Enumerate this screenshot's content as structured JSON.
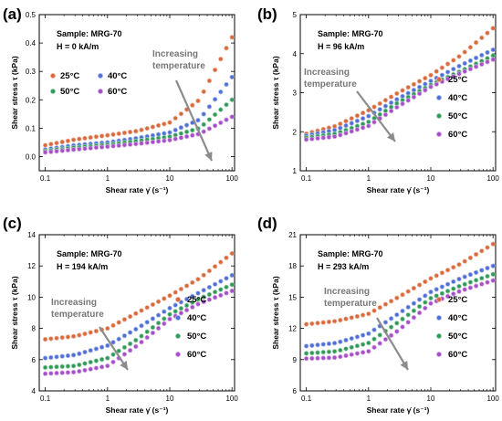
{
  "figure": {
    "colors": {
      "25C": "#d9683a",
      "40C": "#4f6fd6",
      "50C": "#2f9a57",
      "60C": "#a64dc8",
      "arrow": "#8c8c8c",
      "increasing_text": "#777777"
    }
  },
  "chart_data": [
    {
      "id": "a",
      "type": "scatter",
      "panel_label": "(a)",
      "sample_text": "Sample: MRG-70",
      "field_text": "H = 0 kA/m",
      "annotation": [
        "Increasing",
        "temperature"
      ],
      "xlabel": "Shear rate γ̇ (s⁻¹)",
      "ylabel": "Shear stress τ (kPa)",
      "x_scale": "log",
      "xlim": [
        0.08,
        110
      ],
      "ylim": [
        -0.05,
        0.5
      ],
      "yticks": [
        0.0,
        0.1,
        0.2,
        0.3,
        0.4,
        0.5
      ],
      "ytick_labels": [
        "0.0",
        "0.1",
        "0.2",
        "0.3",
        "0.4",
        "0.5"
      ],
      "xticks": [
        0.1,
        1,
        10,
        100
      ],
      "xtick_labels": [
        "0.1",
        "1",
        "10",
        "100"
      ],
      "legend_layout": "grid-top-left",
      "series": [
        {
          "name": "25°C",
          "key": "25C",
          "anchors": [
            [
              0.1,
              0.04
            ],
            [
              0.3,
              0.06
            ],
            [
              1,
              0.075
            ],
            [
              3,
              0.09
            ],
            [
              10,
              0.12
            ],
            [
              30,
              0.2
            ],
            [
              100,
              0.42
            ]
          ]
        },
        {
          "name": "40°C",
          "key": "40C",
          "anchors": [
            [
              0.1,
              0.025
            ],
            [
              0.3,
              0.04
            ],
            [
              1,
              0.05
            ],
            [
              3,
              0.065
            ],
            [
              10,
              0.085
            ],
            [
              30,
              0.13
            ],
            [
              100,
              0.28
            ]
          ]
        },
        {
          "name": "50°C",
          "key": "50C",
          "anchors": [
            [
              0.1,
              0.02
            ],
            [
              0.3,
              0.032
            ],
            [
              1,
              0.042
            ],
            [
              3,
              0.055
            ],
            [
              10,
              0.07
            ],
            [
              30,
              0.1
            ],
            [
              100,
              0.2
            ]
          ]
        },
        {
          "name": "60°C",
          "key": "60C",
          "anchors": [
            [
              0.1,
              0.015
            ],
            [
              0.3,
              0.025
            ],
            [
              1,
              0.035
            ],
            [
              3,
              0.045
            ],
            [
              10,
              0.058
            ],
            [
              30,
              0.08
            ],
            [
              100,
              0.14
            ]
          ]
        }
      ]
    },
    {
      "id": "b",
      "type": "scatter",
      "panel_label": "(b)",
      "sample_text": "Sample: MRG-70",
      "field_text": "H = 96 kA/m",
      "annotation": [
        "Increasing",
        "temperature"
      ],
      "xlabel": "Shear rate γ̇ (s⁻¹)",
      "ylabel": "Shear stress τ (kPa)",
      "x_scale": "log",
      "xlim": [
        0.08,
        110
      ],
      "ylim": [
        1,
        5
      ],
      "yticks": [
        1,
        2,
        3,
        4,
        5
      ],
      "ytick_labels": [
        "1",
        "2",
        "3",
        "4",
        "5"
      ],
      "xticks": [
        0.1,
        1,
        10,
        100
      ],
      "xtick_labels": [
        "0.1",
        "1",
        "10",
        "100"
      ],
      "legend_layout": "column-right",
      "series": [
        {
          "name": "25°C",
          "key": "25C",
          "anchors": [
            [
              0.1,
              1.95
            ],
            [
              0.3,
              2.15
            ],
            [
              1,
              2.55
            ],
            [
              3,
              3.0
            ],
            [
              10,
              3.45
            ],
            [
              30,
              3.95
            ],
            [
              100,
              4.65
            ]
          ]
        },
        {
          "name": "40°C",
          "key": "40C",
          "anchors": [
            [
              0.1,
              1.9
            ],
            [
              0.3,
              2.05
            ],
            [
              1,
              2.4
            ],
            [
              3,
              2.85
            ],
            [
              10,
              3.3
            ],
            [
              30,
              3.7
            ],
            [
              100,
              4.1
            ]
          ]
        },
        {
          "name": "50°C",
          "key": "50C",
          "anchors": [
            [
              0.1,
              1.85
            ],
            [
              0.3,
              1.95
            ],
            [
              1,
              2.25
            ],
            [
              3,
              2.75
            ],
            [
              10,
              3.2
            ],
            [
              30,
              3.55
            ],
            [
              100,
              3.95
            ]
          ]
        },
        {
          "name": "60°C",
          "key": "60C",
          "anchors": [
            [
              0.1,
              1.8
            ],
            [
              0.3,
              1.88
            ],
            [
              1,
              2.15
            ],
            [
              3,
              2.65
            ],
            [
              10,
              3.15
            ],
            [
              30,
              3.5
            ],
            [
              100,
              3.85
            ]
          ]
        }
      ]
    },
    {
      "id": "c",
      "type": "scatter",
      "panel_label": "(c)",
      "sample_text": "Sample: MRG-70",
      "field_text": "H = 194 kA/m",
      "annotation": [
        "Increasing",
        "temperature"
      ],
      "xlabel": "Shear rate γ̇ (s⁻¹)",
      "ylabel": "Shear stress τ (kPa)",
      "x_scale": "log",
      "xlim": [
        0.08,
        110
      ],
      "ylim": [
        4,
        14
      ],
      "yticks": [
        4,
        6,
        8,
        10,
        12,
        14
      ],
      "ytick_labels": [
        "4",
        "6",
        "8",
        "10",
        "12",
        "14"
      ],
      "xticks": [
        0.1,
        1,
        10,
        100
      ],
      "xtick_labels": [
        "0.1",
        "1",
        "10",
        "100"
      ],
      "legend_layout": "column-right",
      "series": [
        {
          "name": "25°C",
          "key": "25C",
          "anchors": [
            [
              0.1,
              7.3
            ],
            [
              0.3,
              7.5
            ],
            [
              1,
              8.0
            ],
            [
              3,
              9.0
            ],
            [
              10,
              10.1
            ],
            [
              30,
              11.2
            ],
            [
              100,
              12.8
            ]
          ]
        },
        {
          "name": "40°C",
          "key": "40C",
          "anchors": [
            [
              0.1,
              6.1
            ],
            [
              0.3,
              6.3
            ],
            [
              1,
              6.9
            ],
            [
              3,
              8.0
            ],
            [
              10,
              9.3
            ],
            [
              30,
              10.3
            ],
            [
              100,
              11.4
            ]
          ]
        },
        {
          "name": "50°C",
          "key": "50C",
          "anchors": [
            [
              0.1,
              5.5
            ],
            [
              0.3,
              5.6
            ],
            [
              1,
              6.1
            ],
            [
              3,
              7.3
            ],
            [
              10,
              8.9
            ],
            [
              30,
              9.9
            ],
            [
              100,
              10.8
            ]
          ]
        },
        {
          "name": "60°C",
          "key": "60C",
          "anchors": [
            [
              0.1,
              5.1
            ],
            [
              0.3,
              5.2
            ],
            [
              1,
              5.6
            ],
            [
              3,
              6.9
            ],
            [
              10,
              8.6
            ],
            [
              30,
              9.6
            ],
            [
              100,
              10.4
            ]
          ]
        }
      ]
    },
    {
      "id": "d",
      "type": "scatter",
      "panel_label": "(d)",
      "sample_text": "Sample: MRG-70",
      "field_text": "H = 293 kA/m",
      "annotation": [
        "Increasing",
        "temperature"
      ],
      "xlabel": "Shear rate γ̇ (s⁻¹)",
      "ylabel": "Shear stress τ (kPa)",
      "x_scale": "log",
      "xlim": [
        0.08,
        110
      ],
      "ylim": [
        6,
        21
      ],
      "yticks": [
        6,
        9,
        12,
        15,
        18,
        21
      ],
      "ytick_labels": [
        "6",
        "9",
        "12",
        "15",
        "18",
        "21"
      ],
      "xticks": [
        0.1,
        1,
        10,
        100
      ],
      "xtick_labels": [
        "0.1",
        "1",
        "10",
        "100"
      ],
      "legend_layout": "column-right",
      "series": [
        {
          "name": "25°C",
          "key": "25C",
          "anchors": [
            [
              0.1,
              12.4
            ],
            [
              0.3,
              12.7
            ],
            [
              1,
              13.4
            ],
            [
              3,
              15.0
            ],
            [
              10,
              16.8
            ],
            [
              30,
              18.2
            ],
            [
              100,
              20.1
            ]
          ]
        },
        {
          "name": "40°C",
          "key": "40C",
          "anchors": [
            [
              0.1,
              10.3
            ],
            [
              0.3,
              10.6
            ],
            [
              1,
              11.5
            ],
            [
              3,
              13.4
            ],
            [
              10,
              15.5
            ],
            [
              30,
              16.8
            ],
            [
              100,
              18.0
            ]
          ]
        },
        {
          "name": "50°C",
          "key": "50C",
          "anchors": [
            [
              0.1,
              9.6
            ],
            [
              0.3,
              9.8
            ],
            [
              1,
              10.6
            ],
            [
              3,
              12.6
            ],
            [
              10,
              14.9
            ],
            [
              30,
              16.1
            ],
            [
              100,
              17.2
            ]
          ]
        },
        {
          "name": "60°C",
          "key": "60C",
          "anchors": [
            [
              0.1,
              9.1
            ],
            [
              0.3,
              9.2
            ],
            [
              1,
              9.8
            ],
            [
              3,
              11.8
            ],
            [
              10,
              14.4
            ],
            [
              30,
              15.6
            ],
            [
              100,
              16.6
            ]
          ]
        }
      ]
    }
  ]
}
